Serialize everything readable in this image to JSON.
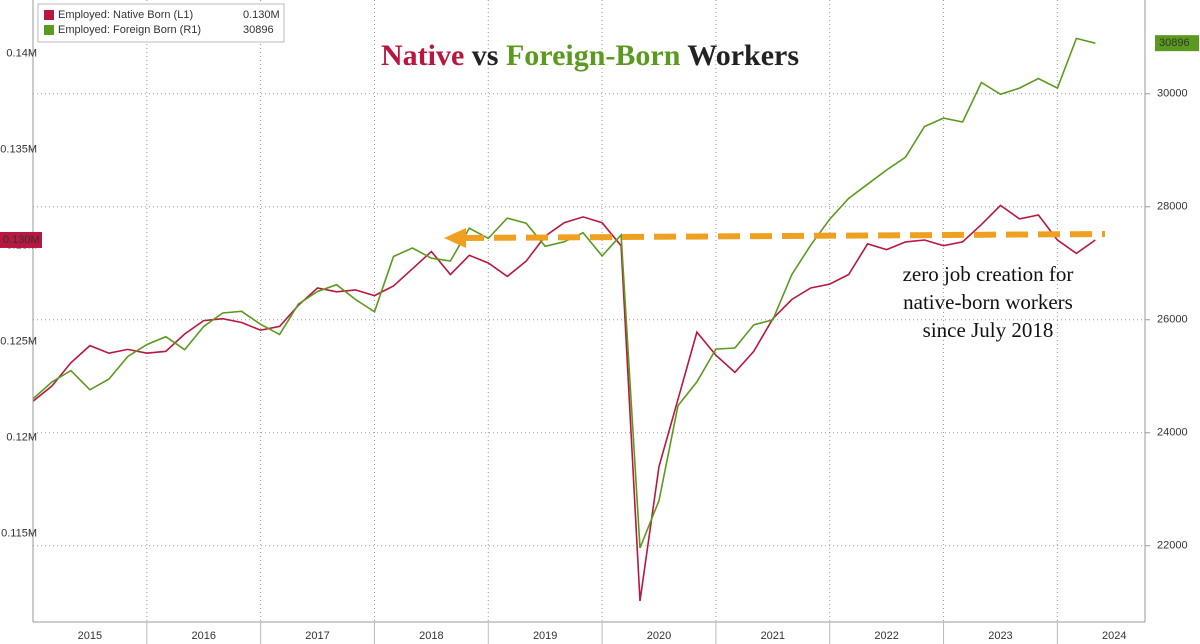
{
  "chart_data": {
    "type": "line",
    "title": [
      "Native",
      "vs",
      "Foreign-Born",
      "Workers"
    ],
    "annotation": [
      "zero job creation for",
      "native-born workers",
      "since July 2018"
    ],
    "x": [
      2015,
      2015.167,
      2015.333,
      2015.5,
      2015.667,
      2015.833,
      2016,
      2016.167,
      2016.333,
      2016.5,
      2016.667,
      2016.833,
      2017,
      2017.167,
      2017.333,
      2017.5,
      2017.667,
      2017.833,
      2018,
      2018.167,
      2018.333,
      2018.5,
      2018.667,
      2018.833,
      2019,
      2019.167,
      2019.333,
      2019.5,
      2019.667,
      2019.833,
      2020,
      2020.167,
      2020.333,
      2020.5,
      2020.667,
      2020.833,
      2021,
      2021.167,
      2021.333,
      2021.5,
      2021.667,
      2021.833,
      2022,
      2022.167,
      2022.333,
      2022.5,
      2022.667,
      2022.833,
      2023,
      2023.167,
      2023.333,
      2023.5,
      2023.667,
      2023.833,
      2024,
      2024.167,
      2024.333
    ],
    "xlim": [
      2015,
      2024.77
    ],
    "xticks": [
      {
        "value": 2015.5,
        "label": "2015"
      },
      {
        "value": 2016.5,
        "label": "2016"
      },
      {
        "value": 2017.5,
        "label": "2017"
      },
      {
        "value": 2018.5,
        "label": "2018"
      },
      {
        "value": 2019.5,
        "label": "2019"
      },
      {
        "value": 2020.5,
        "label": "2020"
      },
      {
        "value": 2021.5,
        "label": "2021"
      },
      {
        "value": 2022.5,
        "label": "2022"
      },
      {
        "value": 2023.5,
        "label": "2023"
      },
      {
        "value": 2024.5,
        "label": "2024"
      }
    ],
    "ylim": [
      0.1104,
      0.1428
    ],
    "yticks": [
      {
        "value": 0.115,
        "label": "0.115M"
      },
      {
        "value": 0.12,
        "label": "0.12M"
      },
      {
        "value": 0.125,
        "label": "0.125M"
      },
      {
        "value": 0.13,
        "label": "0.13M"
      },
      {
        "value": 0.135,
        "label": "0.135M"
      },
      {
        "value": 0.14,
        "label": "0.14M"
      }
    ],
    "y2lim": [
      20650,
      31660
    ],
    "y2ticks": [
      22000,
      24000,
      26000,
      28000,
      30000
    ],
    "grid": true,
    "legend": "top-left",
    "series": [
      {
        "name": "Employed: Native Born (L1)",
        "color": "#b8173f",
        "axis": "y",
        "last_label": "0.130M",
        "values": [
          0.1219,
          0.1227,
          0.1239,
          0.1248,
          0.1244,
          0.1246,
          0.1244,
          0.1245,
          0.1254,
          0.1261,
          0.1262,
          0.126,
          0.1256,
          0.1258,
          0.1269,
          0.1278,
          0.1276,
          0.1277,
          0.1274,
          0.1279,
          0.1288,
          0.1297,
          0.1285,
          0.1295,
          0.1291,
          0.1284,
          0.1292,
          0.1305,
          0.1312,
          0.1315,
          0.1312,
          0.13,
          0.1115,
          0.1185,
          0.122,
          0.1255,
          0.1243,
          0.1234,
          0.1245,
          0.1262,
          0.1272,
          0.1278,
          0.128,
          0.1285,
          0.1301,
          0.1298,
          0.1302,
          0.1303,
          0.13,
          0.1302,
          0.1311,
          0.1321,
          0.1314,
          0.1316,
          0.1303,
          0.1296,
          0.1303
        ]
      },
      {
        "name": "Employed: Foreign Born (R1)",
        "color": "#5b9a1e",
        "axis": "y2",
        "values": [
          24600,
          24900,
          25100,
          24760,
          24950,
          25350,
          25560,
          25700,
          25470,
          25880,
          26120,
          26150,
          25920,
          25740,
          26280,
          26500,
          26620,
          26360,
          26140,
          27120,
          27270,
          27090,
          27040,
          27620,
          27440,
          27800,
          27710,
          27300,
          27380,
          27540,
          27130,
          27500,
          21960,
          22800,
          24480,
          24900,
          25480,
          25500,
          25910,
          26000,
          26800,
          27320,
          27780,
          28150,
          28400,
          28650,
          28880,
          29420,
          29570,
          29500,
          30200,
          29990,
          30100,
          30270,
          30100,
          30980,
          30896
        ]
      }
    ]
  }
}
